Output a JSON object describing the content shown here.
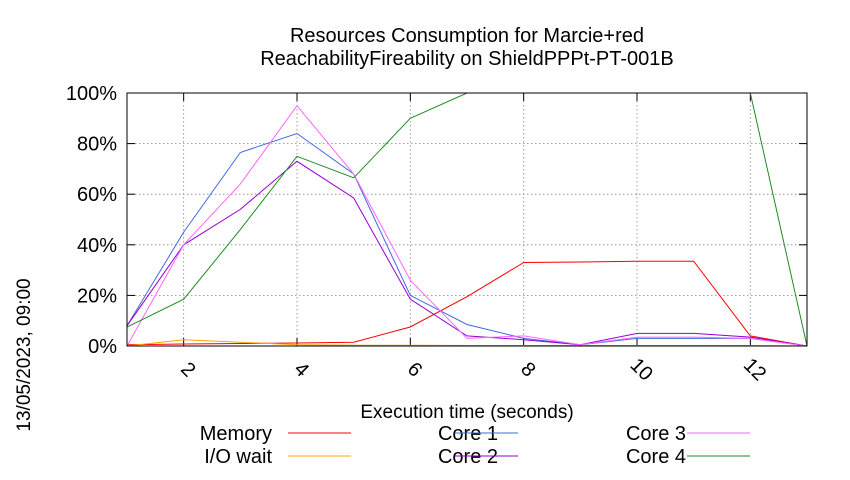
{
  "chart_data": {
    "type": "line",
    "title_line1": "Resources Consumption for Marcie+red",
    "title_line2": "ReachabilityFireability on ShieldPPPt-PT-001B",
    "xlabel": "Execution time (seconds)",
    "ylabel": "",
    "timestamp": "13/05/2023, 09:00",
    "xlim": [
      1,
      13
    ],
    "ylim": [
      0,
      100
    ],
    "x_ticks": [
      2,
      4,
      6,
      8,
      10,
      12
    ],
    "y_ticks": [
      0,
      20,
      40,
      60,
      80,
      100
    ],
    "y_tick_labels": [
      "0%",
      "20%",
      "40%",
      "60%",
      "80%",
      "100%"
    ],
    "grid": true,
    "series": [
      {
        "name": "Memory",
        "color": "#ff0000",
        "x": [
          1,
          2,
          3,
          4,
          5,
          6,
          7,
          8,
          9,
          10,
          11,
          12,
          13
        ],
        "y": [
          0.5,
          0.8,
          1,
          1.2,
          1.5,
          7.5,
          19.5,
          33,
          33.2,
          33.5,
          33.5,
          4,
          0
        ]
      },
      {
        "name": "I/O wait",
        "color": "#ffa500",
        "x": [
          1,
          2,
          3,
          4,
          5,
          6,
          7,
          8,
          9,
          10,
          11,
          12,
          13
        ],
        "y": [
          0,
          2.5,
          1.5,
          0.5,
          0.3,
          0.3,
          0.2,
          0.2,
          0.2,
          0.2,
          0.2,
          0.2,
          0
        ]
      },
      {
        "name": "Core 1",
        "color": "#4169e1",
        "x": [
          1,
          2,
          3,
          4,
          5,
          6,
          7,
          8,
          9,
          10,
          11,
          12,
          13
        ],
        "y": [
          8,
          45,
          76.5,
          84,
          68,
          20,
          8.5,
          3,
          0.5,
          3,
          3,
          3,
          0
        ]
      },
      {
        "name": "Core 2",
        "color": "#9400d3",
        "x": [
          1,
          2,
          3,
          4,
          5,
          6,
          7,
          8,
          9,
          10,
          11,
          12,
          13
        ],
        "y": [
          8,
          40,
          54,
          73,
          58.5,
          18.5,
          4,
          2.5,
          0.5,
          5,
          5,
          3.5,
          0
        ]
      },
      {
        "name": "Core 3",
        "color": "#ff66ff",
        "x": [
          1,
          2,
          3,
          4,
          5,
          6,
          7,
          8,
          9,
          10,
          11,
          12,
          13
        ],
        "y": [
          0,
          40,
          64,
          95,
          68,
          26,
          3,
          4,
          0.5,
          3.5,
          3.5,
          3,
          0
        ]
      },
      {
        "name": "Core 4",
        "color": "#228b22",
        "x": [
          1,
          2,
          3,
          4,
          5,
          6,
          7,
          8,
          9,
          10,
          11,
          12,
          13
        ],
        "y": [
          7.5,
          18.5,
          46,
          75,
          66.5,
          90,
          100,
          100,
          100,
          100,
          100,
          100,
          0
        ]
      }
    ],
    "legend_layout": [
      [
        "Memory",
        "Core 1",
        "Core 3"
      ],
      [
        "I/O wait",
        "Core 2",
        "Core 4"
      ]
    ]
  }
}
